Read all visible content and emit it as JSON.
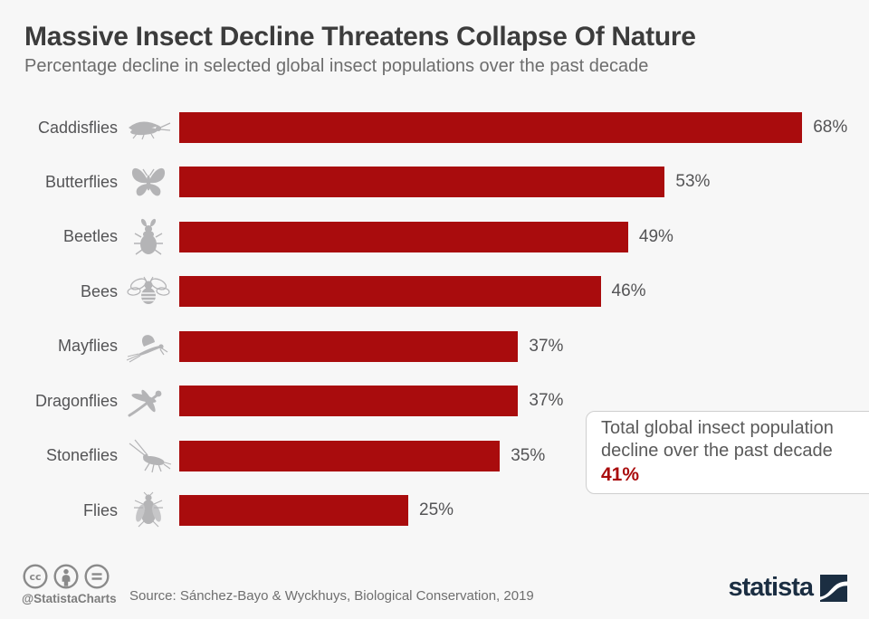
{
  "chart_data": {
    "type": "bar",
    "orientation": "horizontal",
    "title": "Massive Insect Decline Threatens Collapse Of Nature",
    "subtitle": "Percentage decline in selected global insect populations over the past decade",
    "categories": [
      "Caddisflies",
      "Butterflies",
      "Beetles",
      "Bees",
      "Mayflies",
      "Dragonflies",
      "Stoneflies",
      "Flies"
    ],
    "values": [
      68,
      53,
      49,
      46,
      37,
      37,
      35,
      25
    ],
    "icons": [
      "caddisfly-icon",
      "butterfly-icon",
      "beetle-icon",
      "bee-icon",
      "mayfly-icon",
      "dragonfly-icon",
      "stonefly-icon",
      "fly-icon"
    ],
    "unit": "%",
    "xlim": [
      0,
      100
    ],
    "grid": false,
    "value_axis_visible": false,
    "value_labels_position": "end-of-bar",
    "bar_color": "#a90c0d",
    "icon_color": "#b4b4b6"
  },
  "callout": {
    "text": "Total global insect population decline over the past decade",
    "value": "41%"
  },
  "footer": {
    "license_icons": [
      "cc-icon",
      "attribution-icon",
      "no-derivatives-icon"
    ],
    "handle": "@StatistaCharts",
    "source": "Source: Sánchez-Bayo & Wyckhuys, Biological Conservation, 2019",
    "brand": "statista",
    "brand_color": "#1b2e42"
  }
}
